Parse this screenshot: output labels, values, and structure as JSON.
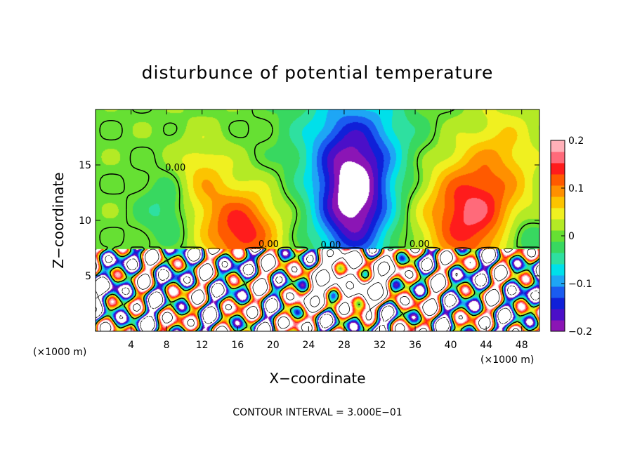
{
  "chart_data": {
    "type": "heatmap",
    "title": "disturbunce of potential temperature",
    "xlabel": "X−coordinate",
    "ylabel": "Z−coordinate",
    "x_unit_left": "(×1000 m)",
    "x_unit_right": "(×1000 m)",
    "footer": "CONTOUR INTERVAL = 3.000E−01",
    "xlim": [
      0,
      50
    ],
    "ylim": [
      0,
      20
    ],
    "x_ticks": [
      4,
      8,
      12,
      16,
      20,
      24,
      28,
      32,
      36,
      40,
      44,
      48
    ],
    "y_ticks": [
      5,
      10,
      15
    ],
    "contour_label": "0.00",
    "colorbar": {
      "min": -0.2,
      "max": 0.2,
      "ticks": [
        {
          "value": 0.2,
          "label": "0.2"
        },
        {
          "value": 0.1,
          "label": "0.1"
        },
        {
          "value": 0.0,
          "label": "0"
        },
        {
          "value": -0.1,
          "label": "−0.1"
        },
        {
          "value": -0.2,
          "label": "−0.2"
        }
      ],
      "colors": [
        "#8b15b5",
        "#4b0fc8",
        "#1020d8",
        "#1a5cf0",
        "#1ea6f5",
        "#00e0ea",
        "#2ee0a0",
        "#38d860",
        "#66e033",
        "#b4ea25",
        "#f0f020",
        "#fcc400",
        "#ff9000",
        "#ff5a00",
        "#ff1c1c",
        "#ff6a7a",
        "#ffb0b8"
      ]
    },
    "field_notes": "upper layer (z > 7.5): negative anomaly centred near x=29, z=11 down to about −0.2; positive anomalies near x=16 and x=42 up to about 0.15; lower layer (z < 7.5): strong mixed anomalies exceeding the colour range (white)"
  }
}
